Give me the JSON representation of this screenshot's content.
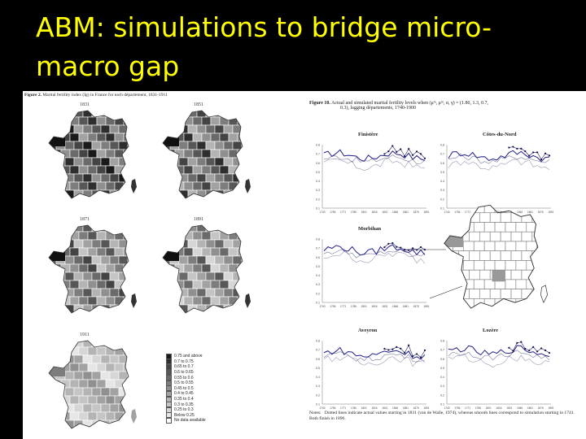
{
  "slide": {
    "title": "ABM: simulations to bridge micro-macro gap"
  },
  "left_figure": {
    "caption_label": "Figure 2.",
    "caption_text": "Marital fertility index (Ig) in France for each département, 1831-1911",
    "map_years": [
      "1831",
      "1851",
      "1871",
      "1891",
      "1911"
    ],
    "legend": [
      {
        "label": "0.75 and above",
        "color": "#1a1a1a"
      },
      {
        "label": "0.7 to 0.75",
        "color": "#2e2e2e"
      },
      {
        "label": "0.65 to 0.7",
        "color": "#444444"
      },
      {
        "label": "0.6 to 0.65",
        "color": "#575757"
      },
      {
        "label": "0.55 to 0.6",
        "color": "#6a6a6a"
      },
      {
        "label": "0.5 to 0.55",
        "color": "#7d7d7d"
      },
      {
        "label": "0.45 to 0.5",
        "color": "#909090"
      },
      {
        "label": "0.4 to 0.45",
        "color": "#a2a2a2"
      },
      {
        "label": "0.35 to 0.4",
        "color": "#b4b4b4"
      },
      {
        "label": "0.3 to 0.35",
        "color": "#c5c5c5"
      },
      {
        "label": "0.25 to 0.3",
        "color": "#d6d6d6"
      },
      {
        "label": "Below 0.25",
        "color": "#e6e6e6"
      },
      {
        "label": "No data available",
        "color": "#ffffff"
      }
    ]
  },
  "right_figure": {
    "caption_label": "Figure 10.",
    "caption_text": "Actual and simulated marital fertility levels when (μᵐ, μᵐ, α, γ) = (1.80, 1.3, 0.7,",
    "caption_text2": "0.3), lagging départements, 1740-1900",
    "panels": [
      "Finistère",
      "Côtes-du-Nord",
      "Morbihan",
      "Aveyron",
      "Lozère"
    ],
    "y_ticks": [
      "0.8",
      "0.7",
      "0.6",
      "0.5",
      "0.4",
      "0.3",
      "0.2",
      "0.1"
    ],
    "x_ticks": [
      "1740",
      "1756",
      "1771",
      "1786",
      "1801",
      "1816",
      "1831",
      "1846",
      "1861",
      "1876",
      "1891"
    ],
    "notes_label": "Notes:",
    "notes_text": "Dotted lines indicate actual values starting in 1831 (van de Walle, 1974), whereas smooth lines correspond to simulation starting in 1741. Both finish in 1896."
  }
}
